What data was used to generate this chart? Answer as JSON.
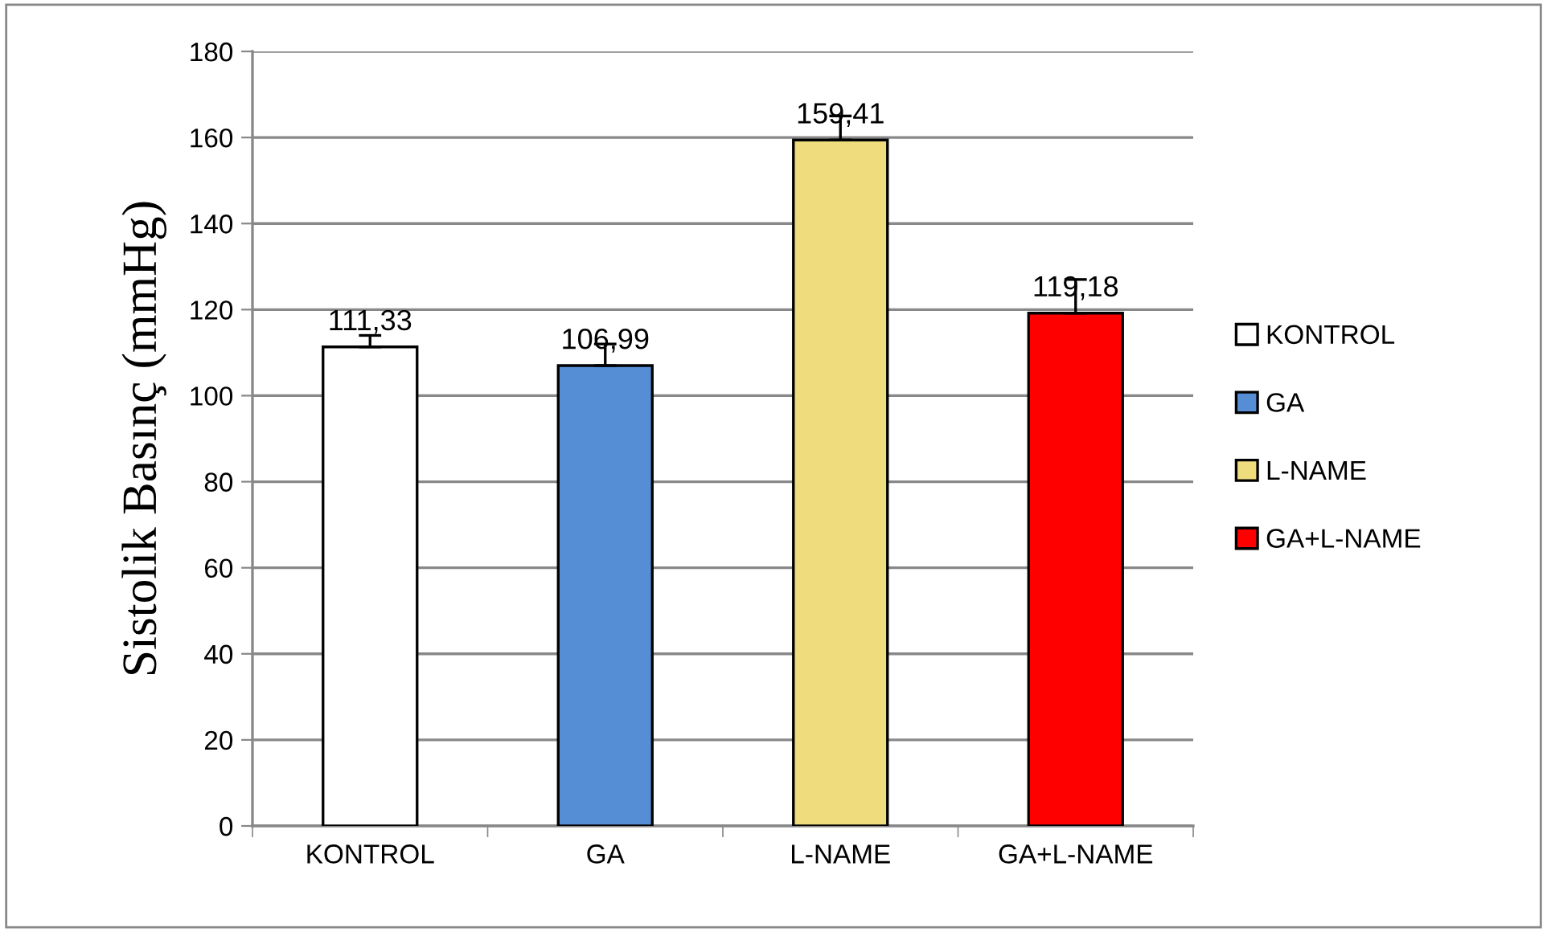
{
  "chart_data": {
    "type": "bar",
    "ylabel": "Sistolik Basınç (mmHg)",
    "categories": [
      "KONTROL",
      "GA",
      "L-NAME",
      "GA+L-NAME"
    ],
    "series": [
      {
        "name": "KONTROL",
        "color": "#ffffff",
        "values": [
          111.33,
          null,
          null,
          null
        ],
        "value_labels": [
          "111,33",
          null,
          null,
          null
        ],
        "errors": [
          [
            111.33,
            114
          ],
          null,
          null,
          null
        ]
      },
      {
        "name": "GA",
        "color": "#558ed5",
        "values": [
          null,
          106.99,
          null,
          null
        ],
        "value_labels": [
          null,
          "106,99",
          null,
          null
        ],
        "errors": [
          null,
          [
            106.99,
            112
          ],
          null,
          null
        ]
      },
      {
        "name": "L-NAME",
        "color": "#eedc7d",
        "values": [
          null,
          null,
          159.41,
          null
        ],
        "value_labels": [
          null,
          null,
          "159,41",
          null
        ],
        "errors": [
          null,
          null,
          [
            159.41,
            165
          ],
          null
        ]
      },
      {
        "name": "GA+L-NAME",
        "color": "#ff0000",
        "values": [
          null,
          null,
          null,
          119.18
        ],
        "value_labels": [
          null,
          null,
          null,
          "119,18"
        ],
        "errors": [
          null,
          null,
          null,
          [
            119.18,
            127
          ]
        ]
      }
    ],
    "ylim": [
      0,
      180
    ],
    "yticks": [
      0,
      20,
      40,
      60,
      80,
      100,
      120,
      140,
      160,
      180
    ],
    "grid": "y",
    "legend": "right"
  }
}
